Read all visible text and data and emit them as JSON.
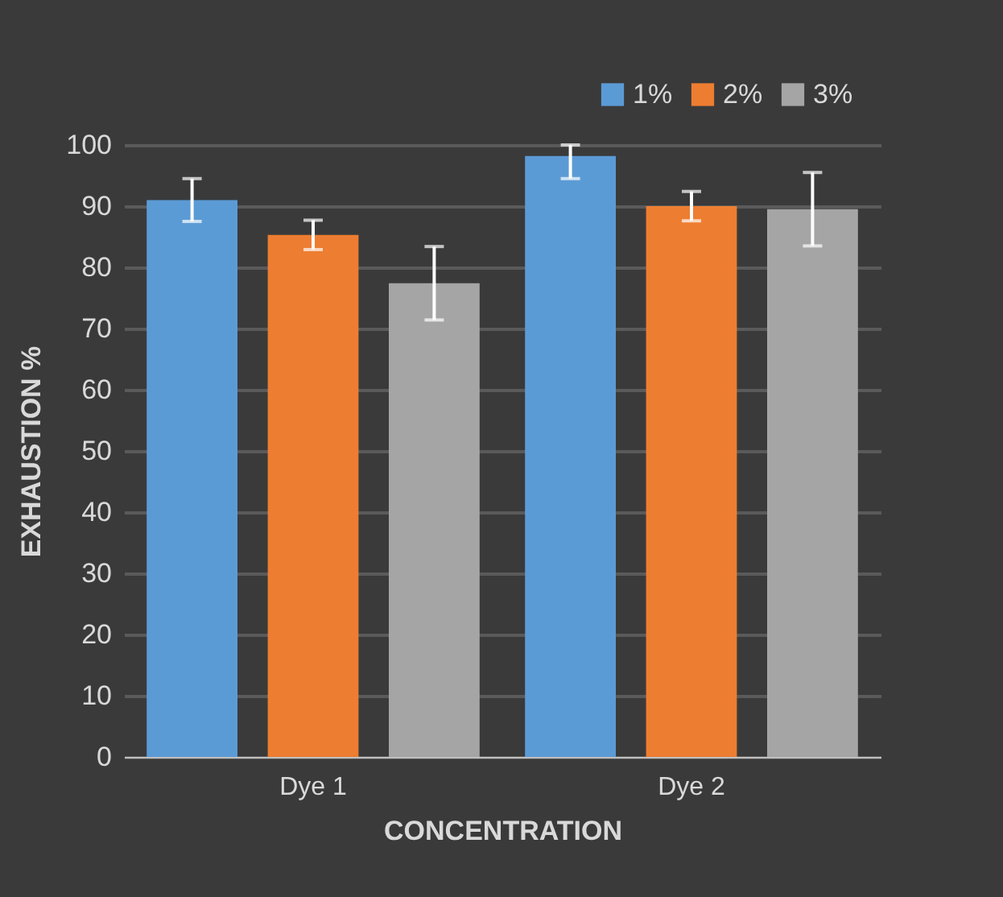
{
  "chart_data": {
    "type": "bar",
    "xlabel": "CONCENTRATION",
    "ylabel": "EXHAUSTION %",
    "categories": [
      "Dye 1",
      "Dye 2"
    ],
    "series": [
      {
        "name": "1%",
        "color": "#5b9bd5",
        "values": [
          91,
          98.2
        ],
        "errors": [
          3.5,
          [
            94.5,
            100
          ]
        ]
      },
      {
        "name": "2%",
        "color": "#ed7d31",
        "values": [
          85.3,
          90
        ],
        "errors": [
          2.4,
          2.4
        ]
      },
      {
        "name": "3%",
        "color": "#a5a5a5",
        "values": [
          77.4,
          89.5
        ],
        "errors": [
          6,
          6
        ]
      }
    ],
    "ylim": [
      0,
      100
    ],
    "yticks": [
      0,
      10,
      20,
      30,
      40,
      50,
      60,
      70,
      80,
      90,
      100
    ],
    "grid": "y",
    "legend": "top right"
  }
}
